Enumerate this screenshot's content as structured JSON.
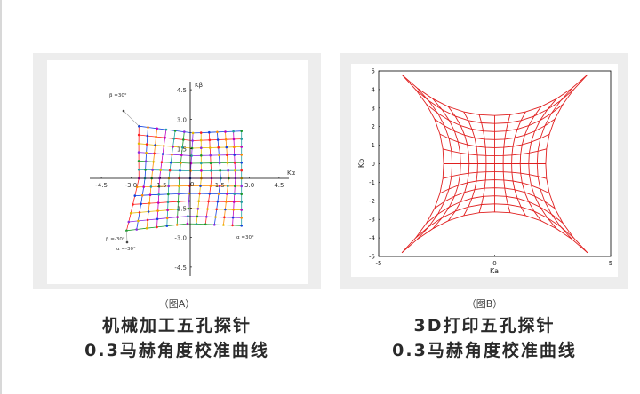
{
  "panel_a": {
    "caption_small": "（图A）",
    "caption_line1": "机械加工五孔探针",
    "caption_line2": "0.3马赫角度校准曲线",
    "axis_x_label": "Kα",
    "axis_y_label": "Kβ",
    "x_ticks": [
      "-4.5",
      "-3.0",
      "-1.5",
      "0",
      "1.5",
      "3.0",
      "4.5"
    ],
    "y_ticks": [
      "4.5",
      "3.0",
      "1.5",
      "0",
      "-1.5",
      "-3.0",
      "-4.5"
    ],
    "origin_label": "0",
    "annotations": [
      "β =30°",
      "β =-30°",
      "α =-30°",
      "α =30°"
    ],
    "grid_colors": [
      "#1a9a2a",
      "#8a2be2",
      "#e6b800",
      "#ff2020",
      "#1040e0",
      "#ff8c00",
      "#c000c0",
      "#20a0a0"
    ]
  },
  "panel_b": {
    "caption_small": "（图B）",
    "caption_line1": "3D打印五孔探针",
    "caption_line2": "0.3马赫角度校准曲线",
    "xlabel": "Ka",
    "ylabel": "Kb",
    "x_ticks": [
      "-5",
      "0",
      "5"
    ],
    "y_ticks": [
      "5",
      "4",
      "3",
      "2",
      "1",
      "0",
      "-1",
      "-2",
      "-3",
      "-4",
      "-5"
    ],
    "line_color": "#e02020"
  },
  "chart_data": [
    {
      "type": "line",
      "title": "",
      "xlabel": "Kα",
      "ylabel": "Kβ",
      "xlim": [
        -5.5,
        5.5
      ],
      "ylim": [
        -5.2,
        5.2
      ],
      "grid": false,
      "series_note_angles_deg": [
        -30,
        30
      ]
    },
    {
      "type": "line",
      "title": "",
      "xlabel": "Ka",
      "ylabel": "Kb",
      "xlim": [
        -5,
        5
      ],
      "ylim": [
        -5,
        5
      ],
      "grid": false,
      "corners": {
        "top_left": [
          -4,
          4.8
        ],
        "top_right": [
          4,
          4.5
        ],
        "bottom_left": [
          -4,
          -4.8
        ],
        "bottom_right": [
          4,
          -4.6
        ]
      }
    }
  ]
}
